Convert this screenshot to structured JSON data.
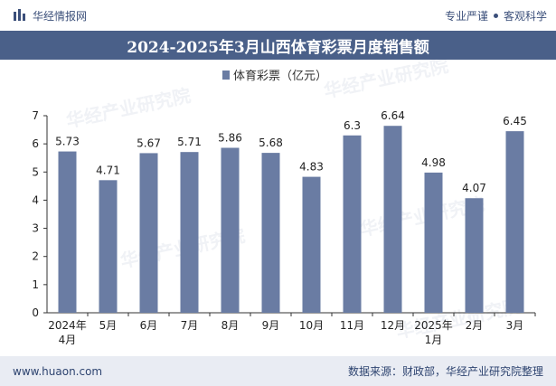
{
  "header": {
    "brand_name": "华经情报网",
    "slogan_left": "专业严谨",
    "slogan_right": "客观科学"
  },
  "title": "2024-2025年3月山西体育彩票月度销售额",
  "footer": {
    "website": "www.huaon.com",
    "source": "数据来源：财政部，华经产业研究院整理"
  },
  "watermark": {
    "text_cn": "华经产业研究院",
    "text_en": "www.huaon.com"
  },
  "colors": {
    "bar": "#6a7ca3",
    "title_bg": "#4a6089",
    "footer_bg": "#e9ecf3",
    "text": "#222222"
  },
  "chart_data": {
    "type": "bar",
    "categories": [
      "2024年\n4月",
      "5月",
      "6月",
      "7月",
      "8月",
      "9月",
      "10月",
      "11月",
      "12月",
      "2025年\n1月",
      "2月",
      "3月"
    ],
    "series": [
      {
        "name": "体育彩票（亿元）",
        "values": [
          5.73,
          4.71,
          5.67,
          5.71,
          5.86,
          5.68,
          4.83,
          6.3,
          6.64,
          4.98,
          4.07,
          6.45
        ]
      }
    ],
    "data_labels": [
      "5.73",
      "4.71",
      "5.67",
      "5.71",
      "5.86",
      "5.68",
      "4.83",
      "6.3",
      "6.64",
      "4.98",
      "4.07",
      "6.45"
    ],
    "y_ticks": [
      0,
      1,
      2,
      3,
      4,
      5,
      6,
      7
    ],
    "ylim": [
      0,
      7
    ],
    "grid": false,
    "legend_position": "top-center"
  }
}
